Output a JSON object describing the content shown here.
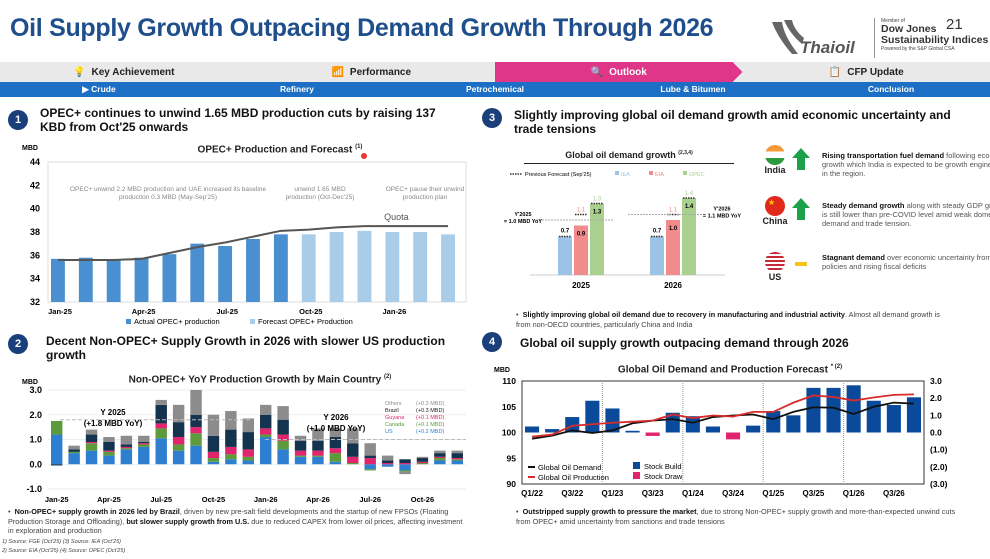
{
  "header": {
    "title": "Oil Supply Growth Outpacing Demand Growth Through 2026",
    "page_number": "21",
    "logo": "Thaioil",
    "djsi": {
      "member": "Member of",
      "line1": "Dow Jones",
      "line2": "Sustainability Indices",
      "powered": "Powered by the S&P Global CSA"
    }
  },
  "nav_primary": [
    {
      "label": "Key Achievement",
      "icon": "lightbulb-icon"
    },
    {
      "label": "Performance",
      "icon": "bar-chart-icon"
    },
    {
      "label": "Outlook",
      "icon": "magnifier-icon",
      "active": true
    },
    {
      "label": "CFP Update",
      "icon": "clipboard-icon"
    }
  ],
  "nav_secondary": [
    {
      "label": "Crude",
      "active": true
    },
    {
      "label": "Refinery"
    },
    {
      "label": "Petrochemical"
    },
    {
      "label": "Lube & Bitumen"
    },
    {
      "label": "Conclusion"
    }
  ],
  "colors": {
    "accent_pink": "#e0368a",
    "nav_blue": "#1c6fc4",
    "title_blue": "#1e4e8c",
    "actual_bar": "#4a8fd0",
    "forecast_bar": "#a9cde8",
    "iea": "#9cc3e6",
    "eia": "#f28b8b",
    "opec": "#a9d08e",
    "us": "#2f7fd1",
    "canada": "#5c9a3b",
    "guyana": "#e0256e",
    "brazil": "#13334f",
    "others": "#8c8c8c",
    "stock_build": "#0b4a9a",
    "stock_draw": "#e0256e",
    "demand_line": "#111111",
    "production_line": "#d82c2c"
  },
  "sections": [
    {
      "number": "1",
      "title": "OPEC+ continues to unwind 1.65 MBD production cuts by raising 137 KBD from Oct'25 onwards"
    },
    {
      "number": "2",
      "title": "Decent Non-OPEC+ Supply Growth in 2026 with slower US production growth",
      "bullet_bold1": "Non-OPEC+ supply growth in 2026 led by Brazil",
      "bullet_text1": ", driven by new pre-salt field developments and the startup of new FPSOs (Floating Production Storage and Offloading), ",
      "bullet_bold2": "but slower supply growth from U.S.",
      "bullet_text2": " due to reduced CAPEX from lower oil prices, affecting investment in exploration and production"
    },
    {
      "number": "3",
      "title": "Slightly improving global oil demand growth amid economic uncertainty and trade tensions",
      "bullet_bold": "Slightly improving global oil demand due to recovery in manufacturing and industrial activity",
      "bullet_text": ". Almost all demand growth is from non-OECD countries, particularly China and India",
      "countries": [
        {
          "name": "India",
          "trend": "up",
          "bold": "Rising transportation fuel demand",
          "text": " following economic growth which India is expected to be growth engine countries in the region."
        },
        {
          "name": "China",
          "trend": "up",
          "bold": "Steady demand growth",
          "text": " along with steady GDP growth which is still lower than pre-COVID level amid weak domestic demand and trade tension."
        },
        {
          "name": "US",
          "trend": "flat",
          "bold": "Stagnant demand",
          "text": " over economic uncertainty from Trump policies and rising fiscal deficits"
        }
      ]
    },
    {
      "number": "4",
      "title": "Global oil supply growth outpacing demand through 2026",
      "bullet_bold": "Outstripped supply growth to pressure the market",
      "bullet_text": ", due to strong Non-OPEC+ supply growth and more-than-expected unwind cuts from OPEC+ amid uncertainty from sanctions and trade tensions"
    }
  ],
  "sources": [
    "1) Source: FGE (Oct'25)  (3) Source: IEA (Oct'25)",
    "2) Source: EIA (Oct'25)  (4) Source: OPEC (Oct'25)"
  ],
  "chart_data": [
    {
      "type": "bar",
      "title": "OPEC+ Production and Forecast",
      "title_sup": "(1)",
      "ylabel": "MBD",
      "ylim": [
        32,
        44
      ],
      "yticks": [
        32,
        34,
        36,
        38,
        40,
        42,
        44
      ],
      "categories": [
        "Jan-25",
        "Feb-25",
        "Mar-25",
        "Apr-25",
        "May-25",
        "Jun-25",
        "Jul-25",
        "Aug-25",
        "Sep-25",
        "Oct-25",
        "Nov-25",
        "Dec-25",
        "Jan-26",
        "Feb-26",
        "Mar-26"
      ],
      "xtick_labels": [
        "Jan-25",
        "Apr-25",
        "Jul-25",
        "Oct-25",
        "Jan-26"
      ],
      "series": [
        {
          "name": "Actual OPEC+ production",
          "values": [
            35.7,
            35.8,
            35.6,
            35.8,
            36.1,
            37.0,
            36.8,
            37.4,
            37.8,
            null,
            null,
            null,
            null,
            null,
            null
          ]
        },
        {
          "name": "Forecast OPEC+ Production",
          "values": [
            null,
            null,
            null,
            null,
            null,
            null,
            null,
            null,
            null,
            37.8,
            38.0,
            38.1,
            38.0,
            38.0,
            37.8
          ]
        },
        {
          "name": "Quota",
          "type": "line",
          "values": [
            35.6,
            35.6,
            35.6,
            35.7,
            36.2,
            36.7,
            37.1,
            37.6,
            38.1,
            38.2,
            38.4,
            38.5,
            38.5,
            38.5,
            38.5
          ]
        }
      ],
      "annotations": [
        "OPEC+ unwind 2.2 MBD production and UAE increased its baseline production 0.3 MBD (May-Sep'25)",
        "unwind 1.65 MBD production (Oct-Dec'25)",
        "OPEC+ pause their unwind production plan"
      ],
      "legend": "bottom"
    },
    {
      "type": "bar",
      "title": "Global oil demand growth",
      "title_sup": "(2,3,4)",
      "categories": [
        "2025",
        "2026"
      ],
      "series": [
        {
          "name": "IEA",
          "values": [
            0.7,
            0.7
          ],
          "labels": [
            "0.7",
            "0.7"
          ]
        },
        {
          "name": "EIA",
          "values": [
            0.9,
            1.0
          ],
          "labels": [
            "0.9",
            "1.0"
          ]
        },
        {
          "name": "OPEC",
          "values": [
            1.3,
            1.4
          ],
          "labels": [
            "1.3",
            "1.4"
          ]
        }
      ],
      "previous_forecast": {
        "name": "Previous Forecast (Sep'25)",
        "values": [
          [
            0.7,
            1.1,
            1.3
          ],
          [
            0.7,
            1.1,
            1.4
          ]
        ],
        "labels": [
          [
            "",
            "1.1",
            "1.3"
          ],
          [
            "",
            "1.1",
            "1.4"
          ]
        ]
      },
      "average_lines": [
        {
          "label1": "Y'2025",
          "label2": "= 1.0 MBD YoY",
          "value": 1.0
        },
        {
          "label1": "Y'2026",
          "label2": "= 1.1 MBD YoY",
          "value": 1.1
        }
      ],
      "legend": "top"
    },
    {
      "type": "bar",
      "stacked": true,
      "title": "Non-OPEC+ YoY Production Growth by Main Country",
      "title_sup": "(2)",
      "ylabel": "MBD",
      "ylim": [
        -1,
        3
      ],
      "yticks": [
        "-1.0",
        "0.0",
        "1.0",
        "2.0",
        "3.0"
      ],
      "categories": [
        "Jan-25",
        "Feb-25",
        "Mar-25",
        "Apr-25",
        "May-25",
        "Jun-25",
        "Jul-25",
        "Aug-25",
        "Sep-25",
        "Oct-25",
        "Nov-25",
        "Dec-25",
        "Jan-26",
        "Feb-26",
        "Mar-26",
        "Apr-26",
        "May-26",
        "Jun-26",
        "Jul-26",
        "Aug-26",
        "Sep-26",
        "Oct-26",
        "Nov-26",
        "Dec-26"
      ],
      "xtick_labels": [
        "Jan-25",
        "Apr-25",
        "Jul-25",
        "Oct-25",
        "Jan-26",
        "Apr-26",
        "Jul-26",
        "Oct-26"
      ],
      "series": [
        {
          "name": "US",
          "legend_value": "(+0.2 MBD)",
          "values": [
            1.2,
            0.45,
            0.55,
            0.35,
            0.6,
            0.7,
            1.05,
            0.55,
            0.75,
            0.1,
            0.2,
            0.15,
            1.1,
            0.6,
            0.3,
            0.3,
            0.1,
            0.0,
            -0.2,
            -0.1,
            -0.25,
            0.0,
            0.15,
            0.15
          ]
        },
        {
          "name": "Canada",
          "legend_value": "(+0.1 MBD)",
          "values": [
            0.55,
            0.05,
            0.3,
            0.15,
            0.05,
            0.1,
            0.4,
            0.25,
            0.5,
            0.15,
            0.2,
            0.15,
            0.1,
            0.35,
            0.05,
            0.05,
            0.35,
            0.05,
            -0.05,
            0.0,
            -0.05,
            0.05,
            0.1,
            0.05
          ]
        },
        {
          "name": "Guyana",
          "legend_value": "(+0.1 MBD)",
          "values": [
            0.0,
            0.0,
            0.05,
            0.05,
            0.05,
            0.05,
            0.2,
            0.3,
            0.25,
            0.25,
            0.3,
            0.3,
            0.25,
            0.25,
            0.2,
            0.2,
            0.2,
            0.25,
            0.25,
            0.05,
            0.05,
            0.05,
            0.05,
            0.05
          ]
        },
        {
          "name": "Brazil",
          "legend_value": "(+0.3 MBD)",
          "values": [
            -0.05,
            0.1,
            0.3,
            0.35,
            0.1,
            0.05,
            0.75,
            0.6,
            0.5,
            0.65,
            0.7,
            0.7,
            0.55,
            0.6,
            0.4,
            0.4,
            0.45,
            0.55,
            0.1,
            0.1,
            0.15,
            0.15,
            0.15,
            0.2
          ]
        },
        {
          "name": "Others",
          "legend_value": "(+0.3 MBD)",
          "values": [
            0.0,
            0.15,
            0.2,
            0.2,
            0.35,
            0.25,
            0.2,
            0.7,
            1.0,
            0.85,
            0.75,
            0.55,
            0.4,
            0.55,
            0.2,
            0.5,
            0.35,
            0.6,
            0.5,
            0.2,
            -0.1,
            0.05,
            0.1,
            0.1
          ]
        }
      ],
      "annotations": [
        {
          "label1": "Y 2025",
          "label2": "(+1.8 MBD YoY)",
          "value": 1.8
        },
        {
          "label1": "Y 2026",
          "label2": "(+1.0 MBD YoY)",
          "value": 1.0
        }
      ],
      "legend": "top-right"
    },
    {
      "type": "bar+line",
      "title": "Global Oil Demand and Production Forecast",
      "title_sup": "* (2)",
      "ylabel": "MBD",
      "ylim": [
        90,
        110
      ],
      "yticks": [
        "90",
        "95",
        "100",
        "105",
        "110"
      ],
      "y2lim": [
        -3,
        3
      ],
      "y2ticks": [
        "(3.0)",
        "(2.0)",
        "(1.0)",
        "0.0",
        "1.0",
        "2.0",
        "3.0"
      ],
      "categories": [
        "Q1/22",
        "Q2/22",
        "Q3/22",
        "Q4/22",
        "Q1/23",
        "Q2/23",
        "Q3/23",
        "Q4/23",
        "Q1/24",
        "Q2/24",
        "Q3/24",
        "Q4/24",
        "Q1/25",
        "Q2/25",
        "Q3/25",
        "Q4/25",
        "Q1/26",
        "Q2/26",
        "Q3/26",
        "Q4/26"
      ],
      "xtick_labels": [
        "Q1/22",
        "Q3/22",
        "Q1/23",
        "Q3/23",
        "Q1/24",
        "Q3/24",
        "Q1/25",
        "Q3/25",
        "Q1/26",
        "Q3/26"
      ],
      "series": [
        {
          "name": "Global Oil Demand",
          "type": "line",
          "axis": "left",
          "values": [
            98.8,
            99.4,
            100.4,
            99.9,
            100.4,
            101.8,
            102.3,
            102.6,
            101.9,
            103.0,
            103.3,
            103.5,
            102.6,
            104.0,
            104.9,
            104.8,
            103.6,
            105.0,
            105.8,
            105.6
          ]
        },
        {
          "name": "Global Oil Production",
          "type": "line",
          "axis": "left",
          "values": [
            99.2,
            99.6,
            101.3,
            101.6,
            101.9,
            102.1,
            102.3,
            103.5,
            102.8,
            103.3,
            103.1,
            104.0,
            104.0,
            105.8,
            107.2,
            106.9,
            106.2,
            106.8,
            107.3,
            107.4
          ]
        },
        {
          "name": "Stock Build",
          "type": "bar",
          "axis": "right"
        },
        {
          "name": "Stock Draw",
          "type": "bar",
          "axis": "right"
        }
      ],
      "stock_balance": [
        0.35,
        0.2,
        0.9,
        1.85,
        1.4,
        0.1,
        -0.2,
        1.15,
        0.95,
        0.35,
        -0.4,
        0.4,
        1.25,
        1.0,
        2.6,
        2.6,
        2.75,
        1.85,
        1.6,
        2.05
      ],
      "legend": "bottom-left"
    }
  ]
}
